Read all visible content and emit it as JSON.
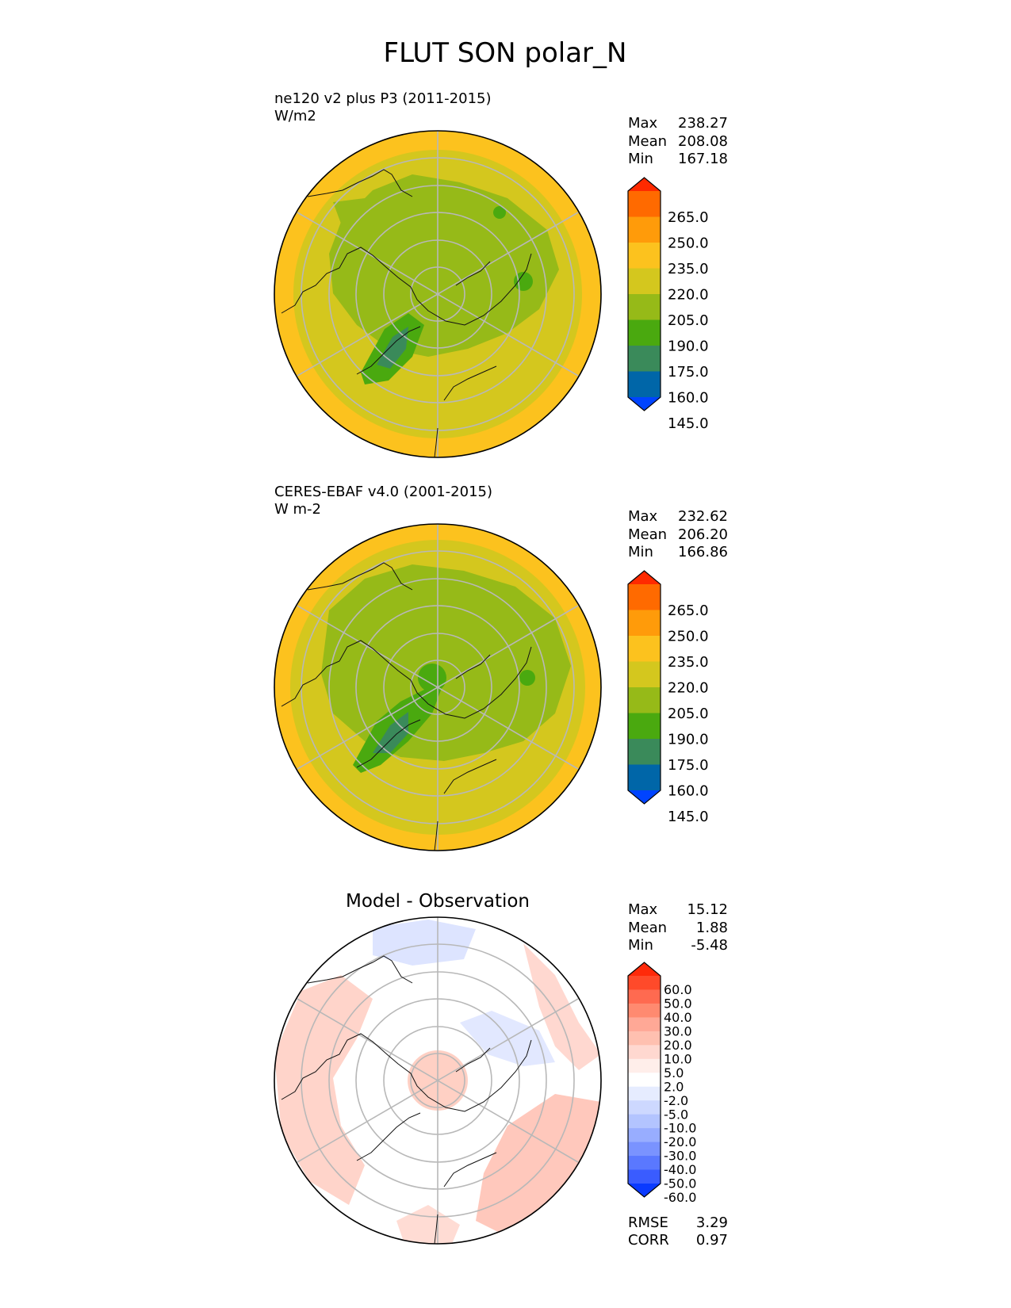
{
  "title": "FLUT SON polar_N",
  "panels": [
    {
      "id": "test",
      "header_lines": [
        "ne120 v2 plus P3 (2011-2015)",
        "W/m2"
      ],
      "stats": [
        {
          "label": "Max",
          "value": "238.27"
        },
        {
          "label": "Mean",
          "value": "208.08"
        },
        {
          "label": "Min",
          "value": "167.18"
        }
      ]
    },
    {
      "id": "reference",
      "header_lines": [
        "CERES-EBAF v4.0 (2001-2015)",
        "W m-2"
      ],
      "stats": [
        {
          "label": "Max",
          "value": "232.62"
        },
        {
          "label": "Mean",
          "value": "206.20"
        },
        {
          "label": "Min",
          "value": "166.86"
        }
      ]
    },
    {
      "id": "difference",
      "center_title": "Model - Observation",
      "stats": [
        {
          "label": "Max",
          "value": "15.12"
        },
        {
          "label": "Mean",
          "value": "1.88"
        },
        {
          "label": "Min",
          "value": "-5.48"
        }
      ],
      "metrics": [
        {
          "label": "RMSE",
          "value": "3.29"
        },
        {
          "label": "CORR",
          "value": "0.97"
        }
      ]
    }
  ],
  "colorbars": {
    "field": {
      "tick_labels": [
        "265.0",
        "250.0",
        "235.0",
        "220.0",
        "205.0",
        "190.0",
        "175.0",
        "160.0",
        "145.0"
      ],
      "colors": [
        "#ff2a00",
        "#ff6a00",
        "#ff9b0a",
        "#fcc21e",
        "#d4c71e",
        "#96ba18",
        "#4aa90f",
        "#3a8a5a",
        "#0066a8",
        "#0044ff"
      ]
    },
    "diff": {
      "tick_labels": [
        "60.0",
        "50.0",
        "40.0",
        "30.0",
        "20.0",
        "10.0",
        "5.0",
        "2.0",
        "-2.0",
        "-5.0",
        "-10.0",
        "-20.0",
        "-30.0",
        "-40.0",
        "-50.0",
        "-60.0"
      ],
      "colors": [
        "#ff2a0a",
        "#ff4a2a",
        "#ff6a50",
        "#ff8a70",
        "#ffa896",
        "#ffc0b0",
        "#ffd8d0",
        "#ffeeea",
        "#ffffff",
        "#e6ecff",
        "#cdd8ff",
        "#b3c4ff",
        "#98adff",
        "#7a93ff",
        "#5a78ff",
        "#3a5cff",
        "#0a3aff"
      ]
    }
  },
  "map_colors": {
    "ocean_outer": "#fcc21e",
    "mid": "#d4c71e",
    "land": "#96ba18",
    "cold": "#4aa90f",
    "colder": "#3a8a5a",
    "diff_pos": "#ffc0b0",
    "diff_pos_weak": "#ffe0da",
    "diff_neg": "#dde4ff"
  }
}
